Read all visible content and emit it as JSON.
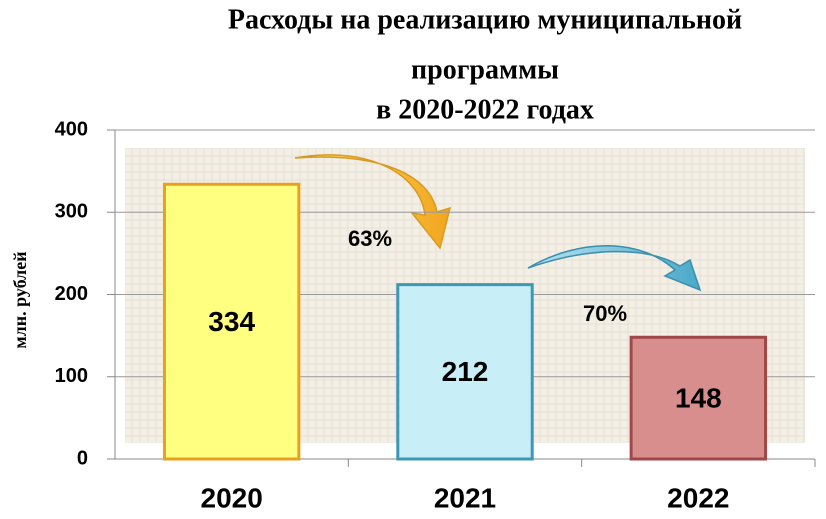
{
  "chart_data": {
    "type": "bar",
    "title": [
      "Расходы на реализацию муниципальной",
      "программы",
      "в 2020-2022 годах"
    ],
    "y_label": "млн. рублей",
    "categories": [
      "2020",
      "2021",
      "2022"
    ],
    "values": [
      334,
      212,
      148
    ],
    "colors": [
      "#ffff80",
      "#c8eef8",
      "#d98e8e"
    ],
    "ylim": [
      0,
      400
    ],
    "yticks": [
      0,
      100,
      200,
      300,
      400
    ],
    "grid": true,
    "annotations": [
      {
        "text": "63%"
      },
      {
        "text": "70%"
      }
    ]
  }
}
